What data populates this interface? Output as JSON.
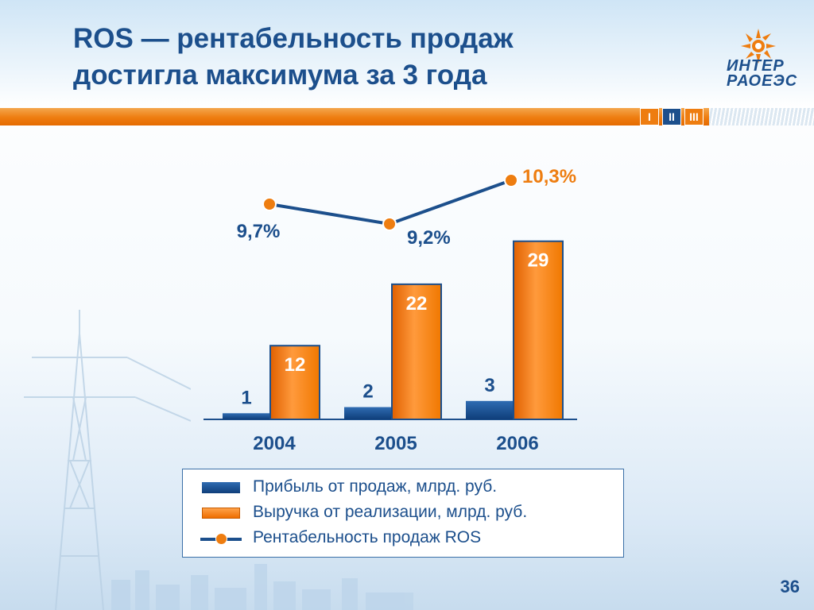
{
  "slide": {
    "title_line1": "ROS — рентабельность продаж",
    "title_line2": "достигла максимума за 3 года",
    "page_number": "36",
    "logo": {
      "line1": "ИНТЕР",
      "line2": "РАОЕЭС"
    },
    "section_nav": [
      {
        "label": "I",
        "active": false
      },
      {
        "label": "II",
        "active": true
      },
      {
        "label": "III",
        "active": false
      }
    ],
    "colors": {
      "title": "#1c4f8c",
      "accent_orange": "#ee7d10",
      "profit_blue": "#1c4f8c"
    }
  },
  "chart_data": {
    "type": "bar",
    "categories": [
      "2004",
      "2005",
      "2006"
    ],
    "series": [
      {
        "name": "Прибыль от продаж, млрд. руб.",
        "values": [
          1,
          2,
          3
        ],
        "labels": [
          "1",
          "2",
          "3"
        ],
        "color": "#1c4f8c"
      },
      {
        "name": "Выручка от реализации, млрд. руб.",
        "values": [
          12,
          22,
          29
        ],
        "labels": [
          "12",
          "22",
          "29"
        ],
        "color": "#ee7d10"
      }
    ],
    "line_series": {
      "name": "Рентабельность продаж ROS",
      "values": [
        9.7,
        9.2,
        10.3
      ],
      "labels": [
        "9,7%",
        "9,2%",
        "10,3%"
      ],
      "color": "#1c4f8c",
      "marker_color": "#ee7d10"
    },
    "ylim": [
      0,
      30
    ],
    "grid": false,
    "legend": "bottom"
  }
}
